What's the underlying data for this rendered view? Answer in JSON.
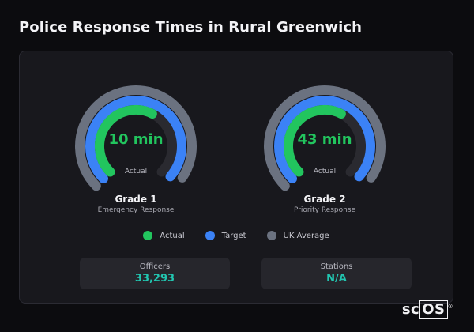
{
  "page": {
    "title": "Police Response Times in Rural Greenwich"
  },
  "colors": {
    "actual": "#22c55e",
    "target": "#3b82f6",
    "uk_average": "#6b7280",
    "track": "#2a2a30",
    "stat_value": "#22c5b0"
  },
  "gauges": [
    {
      "value_label": "10 min",
      "sub_label": "Actual",
      "grade": "Grade 1",
      "description": "Emergency Response",
      "actual_fraction": 0.45,
      "target_fraction": 0.74,
      "uk_average_fraction": 0.72
    },
    {
      "value_label": "43 min",
      "sub_label": "Actual",
      "grade": "Grade 2",
      "description": "Priority Response",
      "actual_fraction": 0.45,
      "target_fraction": 0.74,
      "uk_average_fraction": 0.72
    }
  ],
  "legend": [
    {
      "label": "Actual",
      "color": "#22c55e",
      "icon": "circle-dot"
    },
    {
      "label": "Target",
      "color": "#3b82f6",
      "icon": "circle-dot"
    },
    {
      "label": "UK Average",
      "color": "#6b7280",
      "icon": "circle-dot"
    }
  ],
  "stats": [
    {
      "label": "Officers",
      "value": "33,293"
    },
    {
      "label": "Stations",
      "value": "N/A"
    }
  ],
  "brand": {
    "prefix": "sc",
    "boxed": "OS",
    "mark": "®"
  }
}
